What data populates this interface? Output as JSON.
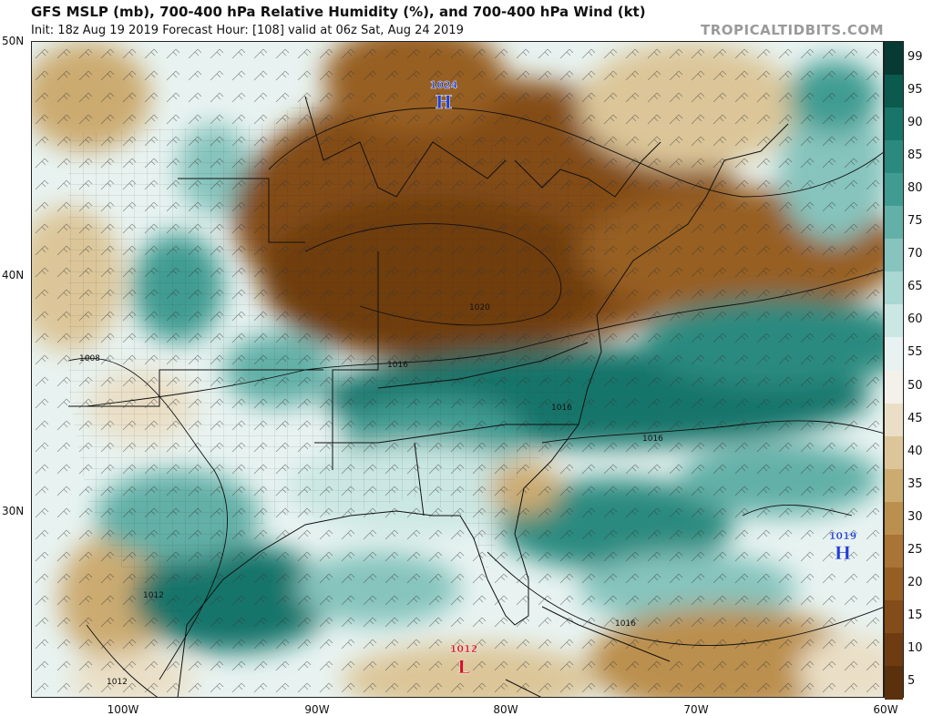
{
  "header": {
    "title": "GFS MSLP (mb), 700-400 hPa Relative Humidity (%), and 700-400 hPa Wind (kt)",
    "subtitle": "Init: 18z Aug 19 2019   Forecast Hour: [108]   valid at 06z Sat, Aug 24 2019",
    "brand": "TROPICALTIDBITS.COM"
  },
  "axes": {
    "lat_labels": [
      "50N",
      "40N",
      "30N"
    ],
    "lon_labels": [
      "100W",
      "90W",
      "80W",
      "70W",
      "60W"
    ]
  },
  "colorbar": {
    "labels": [
      "99",
      "95",
      "90",
      "85",
      "80",
      "75",
      "70",
      "65",
      "60",
      "55",
      "50",
      "45",
      "40",
      "35",
      "30",
      "25",
      "20",
      "15",
      "10",
      "5"
    ],
    "colors": [
      "#063a32",
      "#0b5a4e",
      "#17756a",
      "#2a8a7f",
      "#409c92",
      "#62b0a7",
      "#86c4bd",
      "#a9d7d1",
      "#cbe7e3",
      "#e8f3f1",
      "#f4f1ea",
      "#eadfc6",
      "#dcc699",
      "#ccab71",
      "#bb8f4e",
      "#a97435",
      "#975e24",
      "#834c18",
      "#6f3c11",
      "#5b300c"
    ]
  },
  "pressure_centers": [
    {
      "id": "high-great-lakes",
      "kind": "H",
      "value": "1024",
      "color": "#1f3fd1"
    },
    {
      "id": "high-atlantic",
      "kind": "H",
      "value": "1019",
      "color": "#1f3fd1"
    },
    {
      "id": "low-cuba",
      "kind": "L",
      "value": "1012",
      "color": "#d4101c"
    }
  ],
  "isobar_labels": [
    "1008",
    "1012",
    "1012",
    "1016",
    "1016",
    "1016",
    "1016",
    "1020"
  ]
}
